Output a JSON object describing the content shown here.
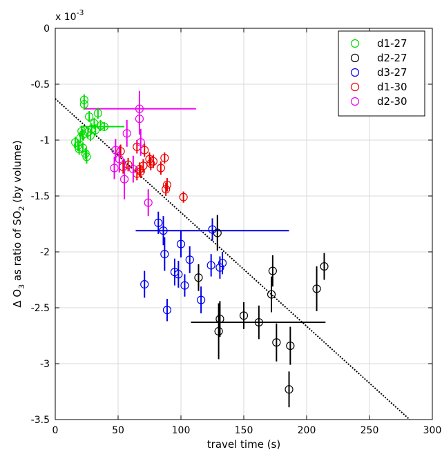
{
  "chart_data": {
    "type": "scatter",
    "xlabel": "travel time (s)",
    "ylabel_parts": [
      "Δ O",
      "3",
      " as ratio of SO",
      "2",
      " (by volume)"
    ],
    "y_multiplier": "x 10",
    "y_exponent": "-3",
    "xlim": [
      0,
      300
    ],
    "ylim": [
      -3.5,
      0
    ],
    "x_ticks": [
      0,
      50,
      100,
      150,
      200,
      250,
      300
    ],
    "y_ticks": [
      0,
      -0.5,
      -1,
      -1.5,
      -2,
      -2.5,
      -3,
      -3.5
    ],
    "x_tick_labels": [
      "0",
      "50",
      "100",
      "150",
      "200",
      "250",
      "300"
    ],
    "y_tick_labels": [
      "0",
      "-0.5",
      "-1",
      "-1.5",
      "-2",
      "-2.5",
      "-3",
      "-3.5"
    ],
    "grid": true,
    "legend_position": "top-right",
    "fit_line": {
      "style": "dotted",
      "color": "#000000",
      "x": [
        0,
        282
      ],
      "y": [
        -0.63,
        -3.5
      ]
    },
    "series": [
      {
        "name": "d1-27",
        "color": "#00dd00",
        "hbar": {
          "y": -0.88,
          "x0": 20,
          "x1": 55
        },
        "points": [
          {
            "x": 16,
            "y": -1.02,
            "e": 0.05
          },
          {
            "x": 18,
            "y": -1.05,
            "e": 0.05
          },
          {
            "x": 19,
            "y": -1.08,
            "e": 0.05
          },
          {
            "x": 20,
            "y": -0.98,
            "e": 0.05
          },
          {
            "x": 21,
            "y": -0.92,
            "e": 0.05
          },
          {
            "x": 22,
            "y": -0.95,
            "e": 0.05
          },
          {
            "x": 23,
            "y": -0.64,
            "e": 0.05
          },
          {
            "x": 23,
            "y": -0.68,
            "e": 0.05
          },
          {
            "x": 22,
            "y": -1.07,
            "e": 0.05
          },
          {
            "x": 24,
            "y": -1.12,
            "e": 0.05
          },
          {
            "x": 25,
            "y": -1.15,
            "e": 0.06
          },
          {
            "x": 26,
            "y": -0.93,
            "e": 0.05
          },
          {
            "x": 27,
            "y": -0.79,
            "e": 0.05
          },
          {
            "x": 28,
            "y": -0.96,
            "e": 0.05
          },
          {
            "x": 29,
            "y": -0.9,
            "e": 0.05
          },
          {
            "x": 31,
            "y": -0.85,
            "e": 0.05
          },
          {
            "x": 32,
            "y": -0.91,
            "e": 0.05
          },
          {
            "x": 34,
            "y": -0.76,
            "e": 0.05
          },
          {
            "x": 36,
            "y": -0.87,
            "e": 0.05
          },
          {
            "x": 39,
            "y": -0.88,
            "e": 0.04
          }
        ]
      },
      {
        "name": "d2-27",
        "color": "#000000",
        "hbar": {
          "y": -2.63,
          "x0": 108,
          "x1": 215
        },
        "points": [
          {
            "x": 114,
            "y": -2.23,
            "e": 0.12
          },
          {
            "x": 129,
            "y": -1.83,
            "e": 0.16
          },
          {
            "x": 130,
            "y": -2.71,
            "e": 0.25
          },
          {
            "x": 131,
            "y": -2.6,
            "e": 0.16
          },
          {
            "x": 150,
            "y": -2.57,
            "e": 0.12
          },
          {
            "x": 162,
            "y": -2.63,
            "e": 0.15
          },
          {
            "x": 172,
            "y": -2.38,
            "e": 0.16
          },
          {
            "x": 173,
            "y": -2.17,
            "e": 0.14
          },
          {
            "x": 176,
            "y": -2.81,
            "e": 0.17
          },
          {
            "x": 187,
            "y": -2.84,
            "e": 0.17
          },
          {
            "x": 186,
            "y": -3.23,
            "e": 0.16
          },
          {
            "x": 208,
            "y": -2.33,
            "e": 0.2
          },
          {
            "x": 214,
            "y": -2.13,
            "e": 0.12
          }
        ]
      },
      {
        "name": "d3-27",
        "color": "#0000ee",
        "hbar": {
          "y": -1.81,
          "x0": 64,
          "x1": 186
        },
        "points": [
          {
            "x": 71,
            "y": -2.29,
            "e": 0.12
          },
          {
            "x": 82,
            "y": -1.74,
            "e": 0.1
          },
          {
            "x": 86,
            "y": -1.81,
            "e": 0.13
          },
          {
            "x": 87,
            "y": -2.02,
            "e": 0.15
          },
          {
            "x": 89,
            "y": -2.52,
            "e": 0.1
          },
          {
            "x": 95,
            "y": -2.18,
            "e": 0.12
          },
          {
            "x": 98,
            "y": -2.2,
            "e": 0.12
          },
          {
            "x": 100,
            "y": -1.93,
            "e": 0.12
          },
          {
            "x": 103,
            "y": -2.3,
            "e": 0.1
          },
          {
            "x": 107,
            "y": -2.07,
            "e": 0.12
          },
          {
            "x": 116,
            "y": -2.43,
            "e": 0.12
          },
          {
            "x": 124,
            "y": -2.12,
            "e": 0.1
          },
          {
            "x": 125,
            "y": -1.8,
            "e": 0.1
          },
          {
            "x": 131,
            "y": -2.14,
            "e": 0.1
          },
          {
            "x": 133,
            "y": -2.1,
            "e": 0.1
          }
        ]
      },
      {
        "name": "d1-30",
        "color": "#ee0000",
        "points": [
          {
            "x": 52,
            "y": -1.1,
            "e": 0.06
          },
          {
            "x": 54,
            "y": -1.24,
            "e": 0.06
          },
          {
            "x": 58,
            "y": -1.22,
            "e": 0.06
          },
          {
            "x": 65,
            "y": -1.06,
            "e": 0.06
          },
          {
            "x": 65,
            "y": -1.3,
            "e": 0.06
          },
          {
            "x": 67,
            "y": -1.26,
            "e": 0.06
          },
          {
            "x": 68,
            "y": -1.28,
            "e": 0.06
          },
          {
            "x": 70,
            "y": -1.23,
            "e": 0.06
          },
          {
            "x": 71,
            "y": -1.09,
            "e": 0.06
          },
          {
            "x": 75,
            "y": -1.17,
            "e": 0.06
          },
          {
            "x": 76,
            "y": -1.21,
            "e": 0.06
          },
          {
            "x": 78,
            "y": -1.19,
            "e": 0.06
          },
          {
            "x": 84,
            "y": -1.25,
            "e": 0.06
          },
          {
            "x": 87,
            "y": -1.16,
            "e": 0.05
          },
          {
            "x": 88,
            "y": -1.44,
            "e": 0.06
          },
          {
            "x": 89,
            "y": -1.4,
            "e": 0.06
          },
          {
            "x": 102,
            "y": -1.51,
            "e": 0.05
          }
        ]
      },
      {
        "name": "d2-30",
        "color": "#ee00ee",
        "hbar": {
          "y": -0.72,
          "x0": 23,
          "x1": 112
        },
        "points": [
          {
            "x": 47,
            "y": -1.25,
            "e": 0.1
          },
          {
            "x": 48,
            "y": -1.09,
            "e": 0.1
          },
          {
            "x": 51,
            "y": -1.17,
            "e": 0.12
          },
          {
            "x": 55,
            "y": -1.35,
            "e": 0.18
          },
          {
            "x": 57,
            "y": -0.94,
            "e": 0.12
          },
          {
            "x": 62,
            "y": -1.26,
            "e": 0.12
          },
          {
            "x": 67,
            "y": -0.81,
            "e": 0.14
          },
          {
            "x": 67,
            "y": -0.72,
            "e": 0.16
          },
          {
            "x": 68,
            "y": -1.02,
            "e": 0.12
          },
          {
            "x": 74,
            "y": -1.56,
            "e": 0.12
          }
        ]
      }
    ]
  }
}
